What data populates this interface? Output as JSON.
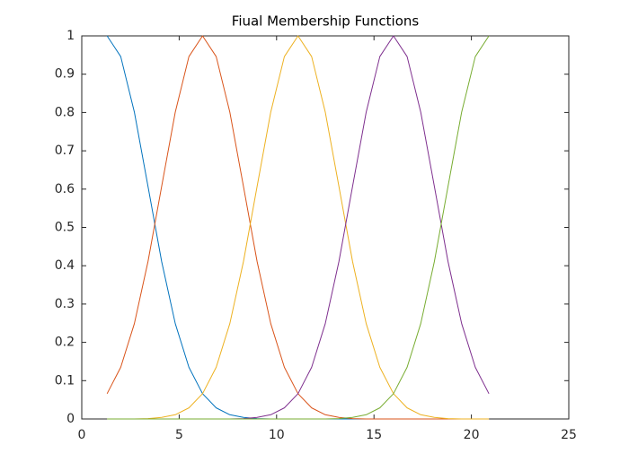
{
  "chart_data": {
    "type": "line",
    "title": "Fiual Membership Functions",
    "x": [
      1.3,
      2,
      2.7,
      3.4,
      4.1,
      4.8,
      5.5,
      6.2,
      6.9,
      7.6,
      8.3,
      9,
      9.7,
      10.4,
      11.1,
      11.8,
      12.5,
      13.2,
      13.9,
      14.6,
      15.3,
      16,
      16.7,
      17.4,
      18.1,
      18.8,
      19.5,
      20.2,
      20.9
    ],
    "series": [
      {
        "color": "#0072BD",
        "values": [
          1,
          0.946,
          0.801,
          0.607,
          0.411,
          0.249,
          0.135,
          0.066,
          0.029,
          0.011,
          0.004,
          0.001,
          0,
          0,
          0,
          0,
          0,
          0,
          0,
          0,
          0,
          0,
          0,
          0,
          0,
          0,
          0,
          0,
          0
        ]
      },
      {
        "color": "#D95319",
        "values": [
          0.066,
          0.135,
          0.249,
          0.411,
          0.607,
          0.801,
          0.946,
          1,
          0.946,
          0.801,
          0.607,
          0.411,
          0.249,
          0.135,
          0.066,
          0.029,
          0.011,
          0.004,
          0.001,
          0,
          0,
          0,
          0,
          0,
          0,
          0,
          0,
          0,
          0
        ]
      },
      {
        "color": "#EDB120",
        "values": [
          0,
          0,
          0,
          0.001,
          0.004,
          0.011,
          0.029,
          0.066,
          0.135,
          0.249,
          0.411,
          0.607,
          0.801,
          0.946,
          1,
          0.946,
          0.801,
          0.607,
          0.411,
          0.249,
          0.135,
          0.066,
          0.029,
          0.011,
          0.004,
          0.001,
          0,
          0,
          0
        ]
      },
      {
        "color": "#7E2F8E",
        "values": [
          0,
          0,
          0,
          0,
          0,
          0,
          0,
          0,
          0,
          0,
          0.001,
          0.004,
          0.011,
          0.029,
          0.066,
          0.135,
          0.249,
          0.411,
          0.607,
          0.801,
          0.946,
          1,
          0.946,
          0.801,
          0.607,
          0.411,
          0.249,
          0.135,
          0.066
        ]
      },
      {
        "color": "#77AC30",
        "values": [
          0,
          0,
          0,
          0,
          0,
          0,
          0,
          0,
          0,
          0,
          0,
          0,
          0,
          0,
          0,
          0,
          0,
          0.001,
          0.004,
          0.011,
          0.029,
          0.066,
          0.135,
          0.249,
          0.411,
          0.607,
          0.801,
          0.946,
          1
        ]
      }
    ],
    "xlim": [
      0,
      25
    ],
    "xticks": [
      0,
      5,
      10,
      15,
      20,
      25
    ],
    "ylim": [
      0,
      1
    ],
    "yticks": [
      0,
      0.1,
      0.2,
      0.3,
      0.4,
      0.5,
      0.6,
      0.7,
      0.8,
      0.9,
      1
    ],
    "grid": false
  }
}
